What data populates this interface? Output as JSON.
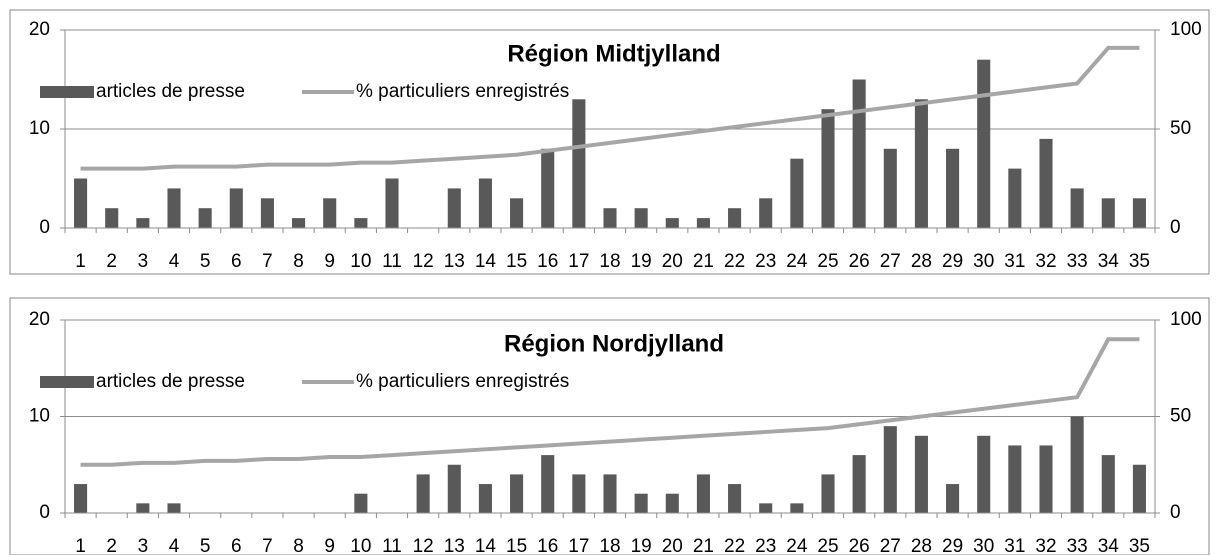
{
  "chart_data": [
    {
      "type": "bar-line",
      "title": "Région Midtjylland",
      "categories": [
        "1",
        "2",
        "3",
        "4",
        "5",
        "6",
        "7",
        "8",
        "9",
        "10",
        "11",
        "12",
        "13",
        "14",
        "15",
        "16",
        "17",
        "18",
        "19",
        "20",
        "21",
        "22",
        "23",
        "24",
        "25",
        "26",
        "27",
        "28",
        "29",
        "30",
        "31",
        "32",
        "33",
        "34",
        "35"
      ],
      "series": [
        {
          "name": "articles de presse",
          "color": "#595959",
          "values": [
            5,
            2,
            1,
            4,
            2,
            4,
            3,
            1,
            3,
            1,
            5,
            0,
            4,
            5,
            3,
            8,
            13,
            2,
            2,
            1,
            1,
            2,
            3,
            7,
            12,
            15,
            8,
            13,
            8,
            17,
            6,
            9,
            4,
            3,
            3
          ]
        },
        {
          "name": "% particuliers enregistrés",
          "color": "#a6a6a6",
          "axis": "y2",
          "values": [
            30,
            30,
            30,
            31,
            31,
            31,
            32,
            32,
            32,
            33,
            33,
            34,
            35,
            36,
            37,
            39,
            41,
            43,
            45,
            47,
            49,
            51,
            53,
            55,
            57,
            59,
            61,
            63,
            65,
            67,
            69,
            71,
            73,
            91,
            91
          ]
        }
      ],
      "ylim": [
        0,
        20
      ],
      "yticks": [
        0,
        10,
        20
      ],
      "y2lim": [
        0,
        100
      ],
      "y2ticks": [
        0,
        50,
        100
      ],
      "grid": true
    },
    {
      "type": "bar-line",
      "title": "Région Nordjylland",
      "categories": [
        "1",
        "2",
        "3",
        "4",
        "5",
        "6",
        "7",
        "8",
        "9",
        "10",
        "11",
        "12",
        "13",
        "14",
        "15",
        "16",
        "17",
        "18",
        "19",
        "20",
        "21",
        "22",
        "23",
        "24",
        "25",
        "26",
        "27",
        "28",
        "29",
        "30",
        "31",
        "32",
        "33",
        "34",
        "35"
      ],
      "series": [
        {
          "name": "articles de presse",
          "color": "#595959",
          "values": [
            3,
            0,
            1,
            1,
            0,
            0,
            0,
            0,
            0,
            2,
            0,
            4,
            5,
            3,
            4,
            6,
            4,
            4,
            2,
            2,
            4,
            3,
            1,
            1,
            4,
            6,
            9,
            8,
            3,
            8,
            7,
            7,
            10,
            6,
            5
          ]
        },
        {
          "name": "% particuliers enregistrés",
          "color": "#a6a6a6",
          "axis": "y2",
          "values": [
            25,
            25,
            26,
            26,
            27,
            27,
            28,
            28,
            29,
            29,
            30,
            31,
            32,
            33,
            34,
            35,
            36,
            37,
            38,
            39,
            40,
            41,
            42,
            43,
            44,
            46,
            48,
            50,
            52,
            54,
            56,
            58,
            60,
            90,
            90
          ]
        }
      ],
      "ylim": [
        0,
        20
      ],
      "yticks": [
        0,
        10,
        20
      ],
      "y2lim": [
        0,
        100
      ],
      "y2ticks": [
        0,
        50,
        100
      ],
      "grid": true
    }
  ]
}
